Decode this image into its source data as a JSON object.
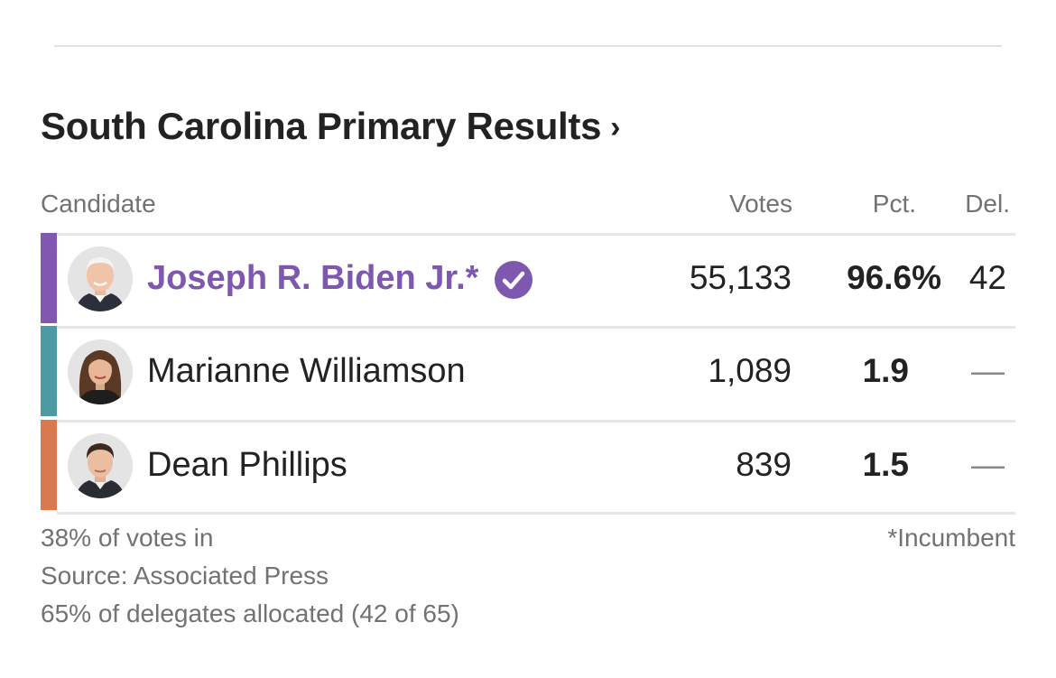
{
  "widget": {
    "title": "South Carolina Primary Results",
    "title_chevron": "›"
  },
  "columns": {
    "candidate": "Candidate",
    "votes": "Votes",
    "pct": "Pct.",
    "del": "Del."
  },
  "candidates": [
    {
      "name": "Joseph R. Biden Jr.*",
      "votes": "55,133",
      "pct": "96.6%",
      "del": "42",
      "winner": true,
      "color": "#8158b0",
      "avatar_icon": "biden-photo"
    },
    {
      "name": "Marianne Williamson",
      "votes": "1,089",
      "pct": "1.9",
      "del": "—",
      "winner": false,
      "color": "#4c9aa3",
      "avatar_icon": "williamson-photo"
    },
    {
      "name": "Dean Phillips",
      "votes": "839",
      "pct": "1.5",
      "del": "—",
      "winner": false,
      "color": "#d9794e",
      "avatar_icon": "phillips-photo"
    }
  ],
  "footer": {
    "reporting": "38% of votes in",
    "source": "Source: Associated Press",
    "delegates": "65% of delegates allocated (42 of 65)",
    "incumbent_note": "*Incumbent"
  },
  "colors": {
    "winner_text": "#7d58ae",
    "check_badge": "#7d58ae",
    "muted_text": "#727272",
    "rule": "#e6e6e6"
  }
}
